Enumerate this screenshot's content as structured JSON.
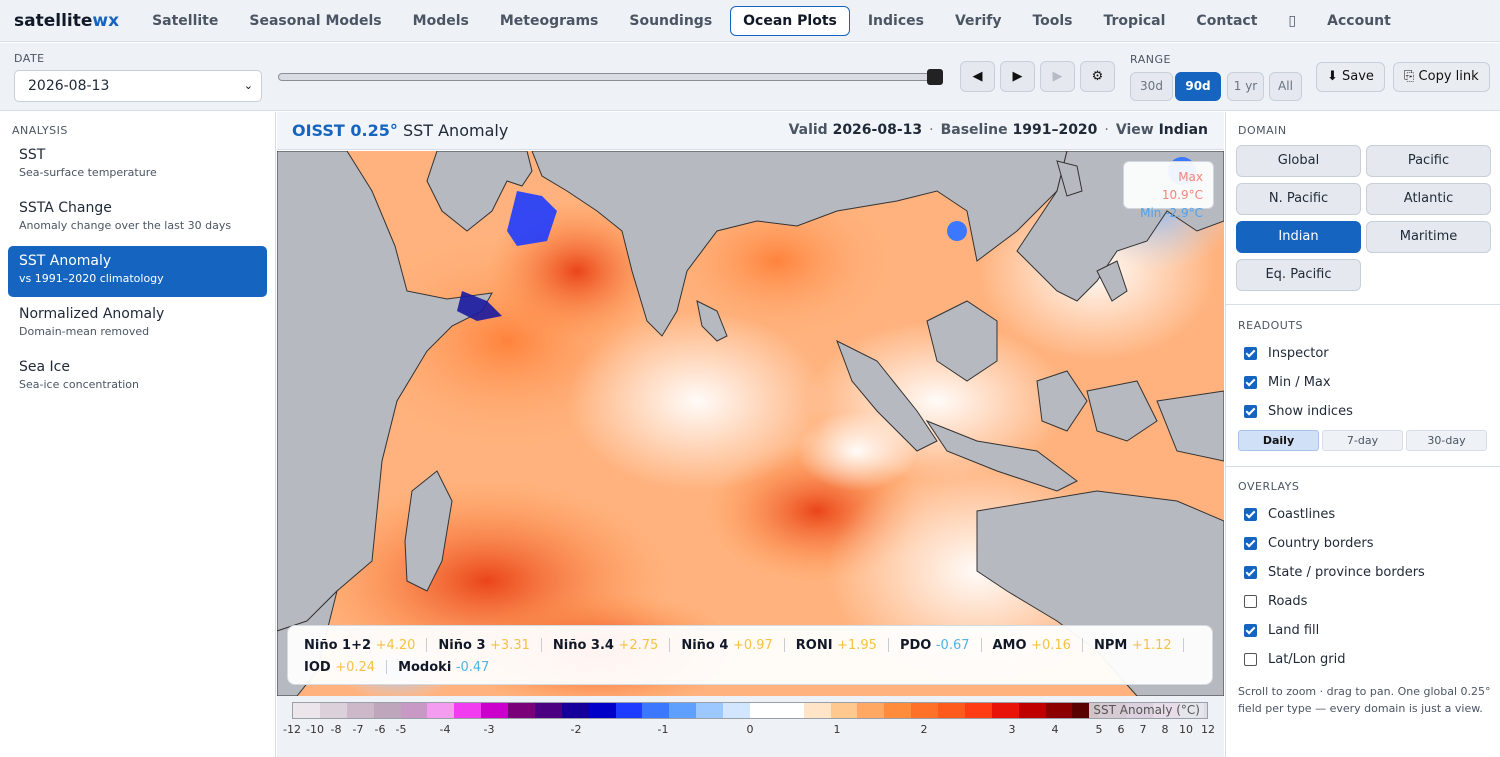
{
  "brand": {
    "main": "satellite",
    "accent": "wx"
  },
  "nav": [
    "Satellite",
    "Seasonal Models",
    "Models",
    "Meteograms",
    "Soundings",
    "Ocean Plots",
    "Indices",
    "Verify",
    "Tools",
    "Tropical",
    "Contact",
    "",
    "Account"
  ],
  "nav_active": "Ocean Plots",
  "controls": {
    "date_label": "DATE",
    "date_value": "2026-08-13",
    "prev_label": "◀",
    "play_label": "▶",
    "next_label": "▶",
    "settings_label": "⚙",
    "range_label": "RANGE",
    "ranges": [
      "30d",
      "90d",
      "1 yr",
      "All"
    ],
    "range_selected": "90d",
    "save_label": "⬇ Save",
    "copy_label": "⎘ Copy link"
  },
  "analysis": {
    "title": "ANALYSIS",
    "items": [
      {
        "title": "SST",
        "subtitle": "Sea-surface temperature"
      },
      {
        "title": "SSTA Change",
        "subtitle": "Anomaly change over the last 30 days"
      },
      {
        "title": "SST Anomaly",
        "subtitle": "vs 1991–2020 climatology"
      },
      {
        "title": "Normalized Anomaly",
        "subtitle": "Domain-mean removed"
      },
      {
        "title": "Sea Ice",
        "subtitle": "Sea-ice concentration"
      }
    ],
    "selected": "SST Anomaly"
  },
  "map": {
    "product": "OISST 0.25°",
    "field": "SST Anomaly",
    "valid_label": "Valid",
    "valid_value": "2026-08-13",
    "baseline_label": "Baseline",
    "baseline_value": "1991–2020",
    "view_label": "View",
    "view_value": "Indian",
    "max_label": "Max 10.9°C",
    "min_label": "Min -2.9°C"
  },
  "indices_row1": [
    {
      "name": "Niño 1+2",
      "value": "+4.20",
      "sign": "p"
    },
    {
      "name": "Niño 3",
      "value": "+3.31",
      "sign": "p"
    },
    {
      "name": "Niño 3.4",
      "value": "+2.75",
      "sign": "p"
    },
    {
      "name": "Niño 4",
      "value": "+0.97",
      "sign": "p"
    },
    {
      "name": "RONI",
      "value": "+1.95",
      "sign": "p"
    },
    {
      "name": "PDO",
      "value": "-0.67",
      "sign": "n"
    },
    {
      "name": "AMO",
      "value": "+0.16",
      "sign": "p"
    },
    {
      "name": "NPM",
      "value": "+1.12",
      "sign": "p"
    }
  ],
  "indices_row2": [
    {
      "name": "IOD",
      "value": "+0.24",
      "sign": "p"
    },
    {
      "name": "Modoki",
      "value": "-0.47",
      "sign": "n"
    }
  ],
  "colorbar": {
    "label": "SST Anomaly (°C)",
    "ticks": [
      "-12",
      "-10",
      "-8",
      "-7",
      "-6",
      "-5",
      "-4",
      "-3",
      "-2",
      "-1",
      "0",
      "1",
      "2",
      "3",
      "4",
      "5",
      "6",
      "7",
      "8",
      "10",
      "12"
    ],
    "colors": [
      "#ece6ec",
      "#dcd0da",
      "#ccb8c8",
      "#bea6bc",
      "#c899c4",
      "#f49cf0",
      "#f23cf0",
      "#cc00cc",
      "#7a007a",
      "#4a0080",
      "#16009c",
      "#0000c8",
      "#1e3cff",
      "#3c78ff",
      "#5fa0ff",
      "#9cc8ff",
      "#d2e6ff",
      "#ffffff",
      "#ffffff",
      "#ffe4c8",
      "#ffc88f",
      "#ffa864",
      "#ff8c3c",
      "#ff7028",
      "#ff5a1e",
      "#ff3c14",
      "#e8140a",
      "#c00000",
      "#8c0000",
      "#5a0000",
      "#7a2846",
      "#a05a8c",
      "#e6a8d2",
      "#dcdce6"
    ]
  },
  "domain": {
    "title": "DOMAIN",
    "buttons": [
      "Global",
      "Pacific",
      "N. Pacific",
      "Atlantic",
      "Indian",
      "Maritime",
      "Eq. Pacific"
    ],
    "selected": "Indian"
  },
  "readouts": {
    "title": "READOUTS",
    "items": [
      {
        "label": "Inspector",
        "checked": true
      },
      {
        "label": "Min / Max",
        "checked": true
      },
      {
        "label": "Show indices",
        "checked": true
      }
    ],
    "periods": [
      "Daily",
      "7-day",
      "30-day"
    ],
    "period_selected": "Daily"
  },
  "overlays": {
    "title": "OVERLAYS",
    "items": [
      {
        "label": "Coastlines",
        "checked": true
      },
      {
        "label": "Country borders",
        "checked": true
      },
      {
        "label": "State / province borders",
        "checked": true
      },
      {
        "label": "Roads",
        "checked": false
      },
      {
        "label": "Land fill",
        "checked": true
      },
      {
        "label": "Lat/Lon grid",
        "checked": false
      }
    ]
  },
  "help_text": "Scroll to zoom · drag to pan. One global 0.25° field per type — every domain is just a view.",
  "colors": {
    "accent": "#1565c0",
    "land": "#b6b9c0",
    "positive": "#f5c242",
    "negative": "#4fb3e8"
  }
}
